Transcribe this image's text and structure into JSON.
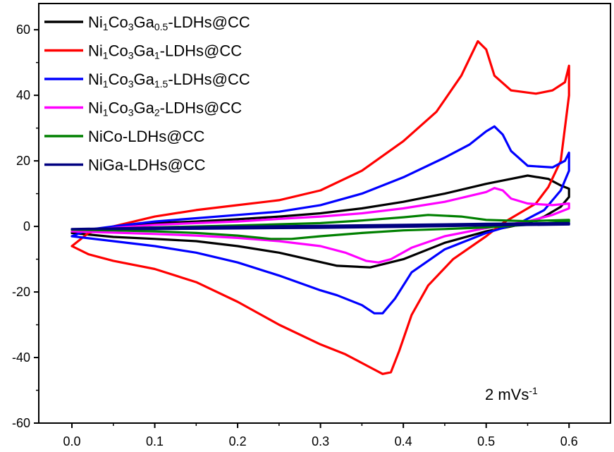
{
  "chart_data": {
    "type": "line",
    "xlim": [
      -0.04,
      0.65
    ],
    "ylim": [
      -60,
      68
    ],
    "x_ticks": [
      0.0,
      0.1,
      0.2,
      0.3,
      0.4,
      0.5,
      0.6
    ],
    "x_tick_labels": [
      "0.0",
      "0.1",
      "0.2",
      "0.3",
      "0.4",
      "0.5",
      "0.6"
    ],
    "y_ticks": [
      -60,
      -40,
      -20,
      0,
      20,
      40,
      60
    ],
    "y_tick_labels": [
      "-60",
      "-40",
      "-20",
      "0",
      "20",
      "40",
      "60"
    ],
    "grid": false,
    "legend_position": "top-left",
    "annotation": {
      "text": "2 mVs",
      "superscript": "-1"
    },
    "series": [
      {
        "name": "Ni1Co3Ga0.5-LDHs@CC",
        "label_parts": [
          [
            "Ni",
            ""
          ],
          [
            "1",
            "sub"
          ],
          [
            "Co",
            ""
          ],
          [
            "3",
            "sub"
          ],
          [
            "Ga",
            ""
          ],
          [
            "0.5",
            "sub"
          ],
          [
            "-LDHs@CC",
            ""
          ]
        ],
        "color": "#000000",
        "points": [
          [
            0.0,
            -2
          ],
          [
            0.05,
            -0.5
          ],
          [
            0.1,
            1
          ],
          [
            0.15,
            1.5
          ],
          [
            0.2,
            2.2
          ],
          [
            0.25,
            3
          ],
          [
            0.3,
            4
          ],
          [
            0.35,
            5.5
          ],
          [
            0.4,
            7.5
          ],
          [
            0.45,
            10
          ],
          [
            0.5,
            13
          ],
          [
            0.55,
            15.5
          ],
          [
            0.575,
            14.5
          ],
          [
            0.59,
            12.5
          ],
          [
            0.6,
            11.5
          ],
          [
            0.6,
            9
          ],
          [
            0.59,
            6
          ],
          [
            0.57,
            3
          ],
          [
            0.55,
            1
          ],
          [
            0.5,
            -1.5
          ],
          [
            0.45,
            -5
          ],
          [
            0.4,
            -10
          ],
          [
            0.36,
            -12.5
          ],
          [
            0.32,
            -12
          ],
          [
            0.25,
            -8
          ],
          [
            0.2,
            -6
          ],
          [
            0.15,
            -4.5
          ],
          [
            0.1,
            -3.8
          ],
          [
            0.05,
            -3.2
          ],
          [
            0.0,
            -2
          ]
        ]
      },
      {
        "name": "Ni1Co3Ga1-LDHs@CC",
        "label_parts": [
          [
            "Ni",
            ""
          ],
          [
            "1",
            "sub"
          ],
          [
            "Co",
            ""
          ],
          [
            "3",
            "sub"
          ],
          [
            "Ga",
            ""
          ],
          [
            "1",
            "sub"
          ],
          [
            "-LDHs@CC",
            ""
          ]
        ],
        "color": "#ff0000",
        "points": [
          [
            0.0,
            -6
          ],
          [
            0.02,
            -2
          ],
          [
            0.05,
            0
          ],
          [
            0.1,
            3
          ],
          [
            0.15,
            5
          ],
          [
            0.2,
            6.5
          ],
          [
            0.25,
            8
          ],
          [
            0.3,
            11
          ],
          [
            0.35,
            17
          ],
          [
            0.4,
            26
          ],
          [
            0.44,
            35
          ],
          [
            0.47,
            46
          ],
          [
            0.49,
            56.5
          ],
          [
            0.5,
            54
          ],
          [
            0.51,
            46
          ],
          [
            0.53,
            41.5
          ],
          [
            0.56,
            40.5
          ],
          [
            0.58,
            41.5
          ],
          [
            0.595,
            44
          ],
          [
            0.6,
            49
          ],
          [
            0.6,
            40
          ],
          [
            0.59,
            20
          ],
          [
            0.575,
            12
          ],
          [
            0.56,
            7
          ],
          [
            0.52,
            1
          ],
          [
            0.5,
            -3
          ],
          [
            0.46,
            -10
          ],
          [
            0.43,
            -18
          ],
          [
            0.41,
            -27
          ],
          [
            0.395,
            -38
          ],
          [
            0.385,
            -44.5
          ],
          [
            0.375,
            -45
          ],
          [
            0.36,
            -43
          ],
          [
            0.33,
            -39
          ],
          [
            0.3,
            -36
          ],
          [
            0.25,
            -30
          ],
          [
            0.2,
            -23
          ],
          [
            0.15,
            -17
          ],
          [
            0.1,
            -13
          ],
          [
            0.05,
            -10.5
          ],
          [
            0.02,
            -8.5
          ],
          [
            0.0,
            -6
          ]
        ]
      },
      {
        "name": "Ni1Co3Ga1.5-LDHs@CC",
        "label_parts": [
          [
            "Ni",
            ""
          ],
          [
            "1",
            "sub"
          ],
          [
            "Co",
            ""
          ],
          [
            "3",
            "sub"
          ],
          [
            "Ga",
            ""
          ],
          [
            "1.5",
            "sub"
          ],
          [
            "-LDHs@CC",
            ""
          ]
        ],
        "color": "#0000ff",
        "points": [
          [
            0.0,
            -3
          ],
          [
            0.02,
            -1
          ],
          [
            0.05,
            0
          ],
          [
            0.1,
            1.5
          ],
          [
            0.15,
            2.5
          ],
          [
            0.2,
            3.5
          ],
          [
            0.25,
            4.5
          ],
          [
            0.3,
            6.5
          ],
          [
            0.35,
            10
          ],
          [
            0.4,
            15
          ],
          [
            0.45,
            21
          ],
          [
            0.48,
            25
          ],
          [
            0.5,
            29
          ],
          [
            0.51,
            30.5
          ],
          [
            0.52,
            28
          ],
          [
            0.53,
            23
          ],
          [
            0.55,
            18.5
          ],
          [
            0.58,
            18
          ],
          [
            0.595,
            20
          ],
          [
            0.6,
            22.5
          ],
          [
            0.6,
            17
          ],
          [
            0.59,
            11
          ],
          [
            0.57,
            5
          ],
          [
            0.54,
            1
          ],
          [
            0.5,
            -2
          ],
          [
            0.45,
            -7
          ],
          [
            0.41,
            -14
          ],
          [
            0.39,
            -22
          ],
          [
            0.375,
            -26.5
          ],
          [
            0.365,
            -26.5
          ],
          [
            0.35,
            -24
          ],
          [
            0.32,
            -21
          ],
          [
            0.3,
            -19.5
          ],
          [
            0.25,
            -15
          ],
          [
            0.2,
            -11
          ],
          [
            0.15,
            -8
          ],
          [
            0.1,
            -6
          ],
          [
            0.05,
            -4.5
          ],
          [
            0.0,
            -3
          ]
        ]
      },
      {
        "name": "Ni1Co3Ga2-LDHs@CC",
        "label_parts": [
          [
            "Ni",
            ""
          ],
          [
            "1",
            "sub"
          ],
          [
            "Co",
            ""
          ],
          [
            "3",
            "sub"
          ],
          [
            "Ga",
            ""
          ],
          [
            "2",
            "sub"
          ],
          [
            "-LDHs@CC",
            ""
          ]
        ],
        "color": "#ff00ff",
        "points": [
          [
            0.0,
            -1.5
          ],
          [
            0.05,
            -0.5
          ],
          [
            0.1,
            0.5
          ],
          [
            0.15,
            1
          ],
          [
            0.2,
            1.5
          ],
          [
            0.25,
            2.3
          ],
          [
            0.3,
            3
          ],
          [
            0.35,
            4
          ],
          [
            0.4,
            5.5
          ],
          [
            0.45,
            7.5
          ],
          [
            0.5,
            10.5
          ],
          [
            0.51,
            11.7
          ],
          [
            0.52,
            11
          ],
          [
            0.53,
            8.5
          ],
          [
            0.55,
            7
          ],
          [
            0.58,
            6.5
          ],
          [
            0.6,
            7
          ],
          [
            0.6,
            5.5
          ],
          [
            0.58,
            3.5
          ],
          [
            0.55,
            1.5
          ],
          [
            0.5,
            -0.5
          ],
          [
            0.45,
            -3
          ],
          [
            0.41,
            -6.5
          ],
          [
            0.385,
            -10
          ],
          [
            0.37,
            -11
          ],
          [
            0.355,
            -10.5
          ],
          [
            0.33,
            -8
          ],
          [
            0.3,
            -6
          ],
          [
            0.25,
            -4.5
          ],
          [
            0.2,
            -3.5
          ],
          [
            0.15,
            -2.8
          ],
          [
            0.1,
            -2.3
          ],
          [
            0.05,
            -1.9
          ],
          [
            0.0,
            -1.5
          ]
        ]
      },
      {
        "name": "NiCo-LDHs@CC",
        "label_parts": [
          [
            "NiCo-LDHs@CC",
            ""
          ]
        ],
        "color": "#008000",
        "points": [
          [
            0.0,
            -1
          ],
          [
            0.1,
            -0.3
          ],
          [
            0.2,
            0.3
          ],
          [
            0.3,
            1
          ],
          [
            0.35,
            1.8
          ],
          [
            0.4,
            2.8
          ],
          [
            0.43,
            3.5
          ],
          [
            0.47,
            3
          ],
          [
            0.5,
            2
          ],
          [
            0.55,
            1.6
          ],
          [
            0.6,
            2
          ],
          [
            0.6,
            1.5
          ],
          [
            0.55,
            0.5
          ],
          [
            0.5,
            -0.3
          ],
          [
            0.45,
            -0.8
          ],
          [
            0.4,
            -1.2
          ],
          [
            0.35,
            -2
          ],
          [
            0.3,
            -3
          ],
          [
            0.265,
            -3.8
          ],
          [
            0.24,
            -3.8
          ],
          [
            0.2,
            -2.8
          ],
          [
            0.15,
            -2
          ],
          [
            0.1,
            -1.5
          ],
          [
            0.05,
            -1.2
          ],
          [
            0.0,
            -1
          ]
        ]
      },
      {
        "name": "NiGa-LDHs@CC",
        "label_parts": [
          [
            "NiGa-LDHs@CC",
            ""
          ]
        ],
        "color": "#000080",
        "points": [
          [
            0.0,
            -0.8
          ],
          [
            0.1,
            -0.4
          ],
          [
            0.2,
            -0.1
          ],
          [
            0.3,
            0.2
          ],
          [
            0.4,
            0.5
          ],
          [
            0.5,
            0.8
          ],
          [
            0.6,
            1
          ],
          [
            0.6,
            0.6
          ],
          [
            0.5,
            0.3
          ],
          [
            0.4,
            -0.1
          ],
          [
            0.3,
            -0.4
          ],
          [
            0.2,
            -0.6
          ],
          [
            0.1,
            -0.8
          ],
          [
            0.0,
            -0.8
          ]
        ]
      }
    ]
  }
}
